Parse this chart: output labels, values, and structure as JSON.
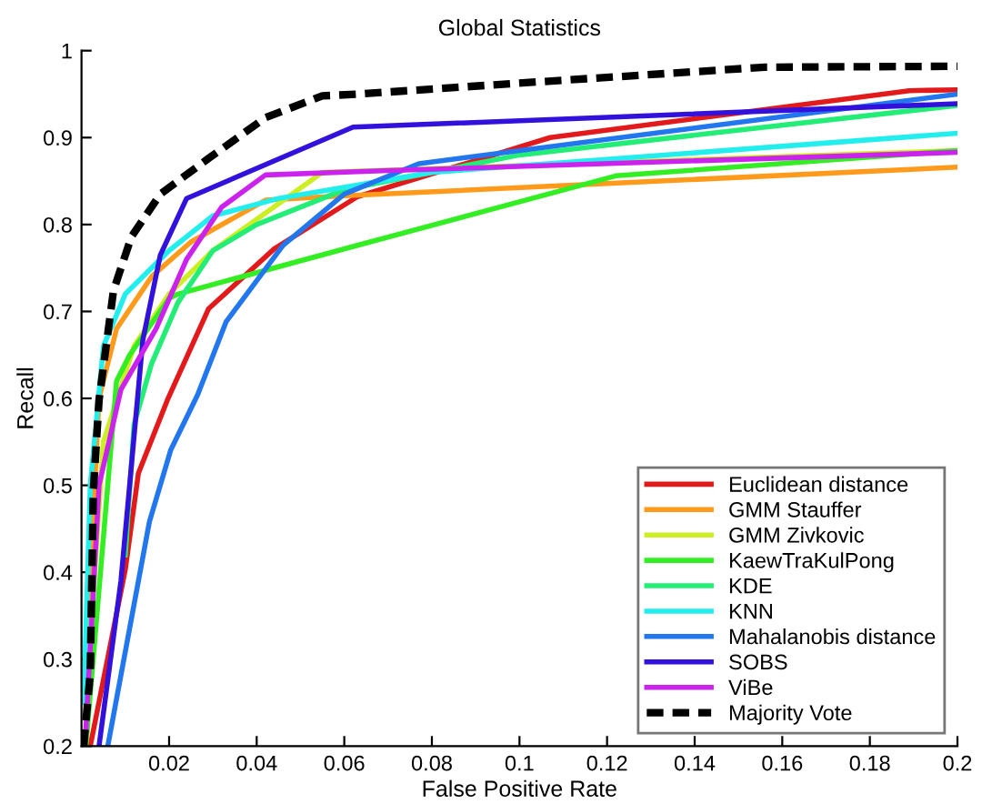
{
  "chart_data": {
    "type": "line",
    "title": "Global Statistics",
    "xlabel": "False Positive Rate",
    "ylabel": "Recall",
    "xlim": [
      0,
      0.2
    ],
    "ylim": [
      0.2,
      1
    ],
    "xticks": [
      0.02,
      0.04,
      0.06,
      0.08,
      0.1,
      0.12,
      0.14,
      0.16,
      0.18,
      0.2
    ],
    "yticks": [
      0.2,
      0.3,
      0.4,
      0.5,
      0.6,
      0.7,
      0.8,
      0.9,
      1
    ],
    "grid": false,
    "legend": "bottom right",
    "marker": "none",
    "series": [
      {
        "name": "Euclidean distance",
        "color": "#e31a1c",
        "x": [
          0.002,
          0.01,
          0.013,
          0.0196,
          0.029,
          0.044,
          0.063,
          0.107,
          0.189,
          0.2
        ],
        "values": [
          0.2,
          0.403,
          0.514,
          0.598,
          0.703,
          0.772,
          0.832,
          0.9,
          0.954,
          0.955
        ]
      },
      {
        "name": "GMM Stauffer",
        "color": "#ff9a1a",
        "x": [
          0.001,
          0.004,
          0.008,
          0.016,
          0.025,
          0.042,
          0.06,
          0.2
        ],
        "values": [
          0.3,
          0.6,
          0.68,
          0.74,
          0.78,
          0.828,
          0.833,
          0.866
        ]
      },
      {
        "name": "GMM Zivkovic",
        "color": "#ccee22",
        "x": [
          0.001,
          0.005,
          0.012,
          0.02,
          0.03,
          0.055,
          0.2
        ],
        "values": [
          0.25,
          0.55,
          0.66,
          0.72,
          0.77,
          0.86,
          0.885
        ]
      },
      {
        "name": "KaewTraKulPong",
        "color": "#33ee22",
        "x": [
          0.001,
          0.008,
          0.011,
          0.02,
          0.022,
          0.063,
          0.122,
          0.2
        ],
        "values": [
          0.2,
          0.62,
          0.65,
          0.715,
          0.72,
          0.776,
          0.856,
          0.885
        ]
      },
      {
        "name": "KDE",
        "color": "#22ee77",
        "x": [
          0.01,
          0.012,
          0.016,
          0.022,
          0.03,
          0.04,
          0.06,
          0.1,
          0.2
        ],
        "values": [
          0.42,
          0.57,
          0.64,
          0.71,
          0.77,
          0.8,
          0.84,
          0.88,
          0.937
        ]
      },
      {
        "name": "KNN",
        "color": "#22eeee",
        "x": [
          0.0005,
          0.002,
          0.005,
          0.01,
          0.02,
          0.03,
          0.045,
          0.08,
          0.2
        ],
        "values": [
          0.25,
          0.5,
          0.66,
          0.72,
          0.77,
          0.81,
          0.83,
          0.86,
          0.905
        ]
      },
      {
        "name": "Mahalanobis distance",
        "color": "#2277ee",
        "x": [
          0.006,
          0.0155,
          0.0204,
          0.0265,
          0.033,
          0.046,
          0.06,
          0.077,
          0.2
        ],
        "values": [
          0.2,
          0.458,
          0.541,
          0.604,
          0.688,
          0.776,
          0.835,
          0.87,
          0.95
        ]
      },
      {
        "name": "SOBS",
        "color": "#3311dd",
        "x": [
          0.004,
          0.009,
          0.014,
          0.018,
          0.024,
          0.062,
          0.2
        ],
        "values": [
          0.2,
          0.39,
          0.667,
          0.765,
          0.83,
          0.912,
          0.939
        ]
      },
      {
        "name": "ViBe",
        "color": "#cc22ee",
        "x": [
          0.001,
          0.004,
          0.009,
          0.017,
          0.024,
          0.032,
          0.042,
          0.07,
          0.2
        ],
        "values": [
          0.22,
          0.5,
          0.61,
          0.68,
          0.76,
          0.82,
          0.857,
          0.862,
          0.883
        ]
      },
      {
        "name": "Majority Vote",
        "color": "#000000",
        "line_style": "dashed",
        "x": [
          0.0005,
          0.002,
          0.0027,
          0.004,
          0.0073,
          0.0114,
          0.018,
          0.029,
          0.042,
          0.055,
          0.063,
          0.104,
          0.156,
          0.2
        ],
        "values": [
          0.2,
          0.284,
          0.493,
          0.598,
          0.724,
          0.786,
          0.835,
          0.876,
          0.923,
          0.948,
          0.95,
          0.964,
          0.981,
          0.982
        ]
      }
    ]
  }
}
